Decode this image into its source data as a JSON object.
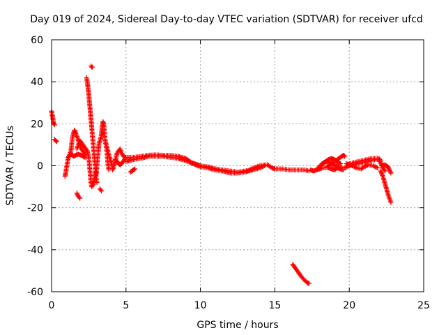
{
  "chart_data": {
    "type": "scatter",
    "title": "Day 019 of 2024, Sidereal Day-to-day VTEC variation (SDTVAR) for receiver ufcd",
    "xlabel": "GPS time / hours",
    "ylabel": "SDTVAR / TECUs",
    "xlim": [
      0,
      25
    ],
    "ylim": [
      -60,
      60
    ],
    "xticks": [
      0,
      5,
      10,
      15,
      20,
      25
    ],
    "yticks": [
      -60,
      -40,
      -20,
      0,
      20,
      40,
      60
    ],
    "grid": true,
    "marker": "+",
    "color": "#ff0000",
    "series": [
      {
        "name": "SDTVAR",
        "segments": [
          [
            [
              0.0,
              26.0
            ],
            [
              0.05,
              24.0
            ],
            [
              0.1,
              22.0
            ],
            [
              0.15,
              20.0
            ],
            [
              0.2,
              19.5
            ]
          ],
          [
            [
              0.2,
              12.5
            ],
            [
              0.3,
              11.8
            ],
            [
              0.35,
              11.5
            ]
          ],
          [
            [
              0.9,
              -5.0
            ],
            [
              0.95,
              -3.5
            ],
            [
              1.0,
              -1.0
            ],
            [
              1.05,
              1.0
            ],
            [
              1.1,
              3.0
            ],
            [
              1.2,
              5.0
            ],
            [
              1.3,
              7.0
            ],
            [
              1.35,
              10.0
            ],
            [
              1.4,
              13.5
            ],
            [
              1.5,
              16.0
            ],
            [
              1.55,
              17.0
            ],
            [
              1.6,
              16.0
            ],
            [
              1.7,
              14.0
            ],
            [
              1.8,
              12.0
            ],
            [
              1.9,
              10.0
            ],
            [
              2.0,
              8.0
            ],
            [
              2.1,
              7.0
            ],
            [
              2.2,
              6.0
            ],
            [
              2.3,
              4.0
            ]
          ],
          [
            [
              1.1,
              4.0
            ],
            [
              1.2,
              5.0
            ],
            [
              1.3,
              5.5
            ],
            [
              1.4,
              5.0
            ],
            [
              1.5,
              4.5
            ],
            [
              1.6,
              5.0
            ],
            [
              1.8,
              5.5
            ],
            [
              2.0,
              5.0
            ],
            [
              2.2,
              4.0
            ]
          ],
          [
            [
              1.7,
              8.0
            ],
            [
              1.8,
              10.0
            ],
            [
              1.9,
              12.0
            ],
            [
              2.0,
              11.0
            ],
            [
              2.2,
              9.0
            ],
            [
              2.4,
              7.0
            ],
            [
              2.5,
              4.0
            ],
            [
              2.55,
              0.0
            ],
            [
              2.6,
              -4.0
            ],
            [
              2.65,
              -8.0
            ],
            [
              2.7,
              -10.0
            ],
            [
              2.8,
              -9.0
            ],
            [
              2.9,
              -6.0
            ],
            [
              3.0,
              -3.0
            ]
          ],
          [
            [
              1.7,
              -13.0
            ],
            [
              1.75,
              -14.0
            ],
            [
              1.8,
              -14.5
            ],
            [
              1.85,
              -15.0
            ],
            [
              1.9,
              -15.5
            ]
          ],
          [
            [
              2.35,
              42.0
            ],
            [
              2.4,
              40.0
            ],
            [
              2.45,
              37.0
            ],
            [
              2.5,
              34.0
            ],
            [
              2.55,
              30.0
            ],
            [
              2.6,
              26.0
            ],
            [
              2.65,
              22.0
            ],
            [
              2.7,
              18.0
            ],
            [
              2.75,
              14.0
            ],
            [
              2.8,
              10.0
            ],
            [
              2.85,
              6.0
            ],
            [
              2.9,
              2.0
            ],
            [
              2.95,
              -2.0
            ],
            [
              3.0,
              -6.0
            ],
            [
              3.05,
              -8.0
            ]
          ],
          [
            [
              2.65,
              47.5
            ],
            [
              2.7,
              47.0
            ],
            [
              2.75,
              47.0
            ]
          ],
          [
            [
              3.0,
              -4.0
            ],
            [
              3.05,
              0.0
            ],
            [
              3.1,
              4.0
            ],
            [
              3.15,
              8.0
            ],
            [
              3.2,
              11.0
            ],
            [
              3.3,
              13.0
            ],
            [
              3.35,
              15.0
            ],
            [
              3.4,
              18.0
            ],
            [
              3.45,
              21.0
            ],
            [
              3.5,
              20.0
            ],
            [
              3.55,
              16.0
            ],
            [
              3.6,
              12.0
            ],
            [
              3.7,
              8.0
            ],
            [
              3.75,
              4.0
            ],
            [
              3.8,
              0.0
            ],
            [
              3.85,
              -2.0
            ]
          ],
          [
            [
              3.25,
              -11.0
            ],
            [
              3.3,
              -11.5
            ],
            [
              3.35,
              -12.0
            ]
          ],
          [
            [
              3.6,
              12.0
            ],
            [
              3.75,
              8.0
            ],
            [
              3.9,
              4.0
            ],
            [
              4.0,
              2.0
            ],
            [
              4.05,
              0.0
            ],
            [
              4.1,
              -2.0
            ],
            [
              4.2,
              0.0
            ],
            [
              4.3,
              3.0
            ],
            [
              4.4,
              6.0
            ],
            [
              4.5,
              7.0
            ],
            [
              4.6,
              8.0
            ],
            [
              4.7,
              6.0
            ],
            [
              4.8,
              5.0
            ],
            [
              4.9,
              4.0
            ]
          ],
          [
            [
              4.3,
              3.0
            ],
            [
              4.4,
              2.0
            ],
            [
              4.5,
              1.0
            ],
            [
              4.6,
              0.5
            ],
            [
              4.7,
              1.0
            ],
            [
              4.8,
              2.0
            ],
            [
              4.9,
              3.0
            ],
            [
              5.0,
              4.0
            ]
          ],
          [
            [
              5.0,
              4.0
            ],
            [
              5.5,
              4.0
            ],
            [
              6.0,
              4.5
            ],
            [
              6.5,
              5.0
            ],
            [
              7.0,
              5.2
            ],
            [
              7.5,
              5.0
            ],
            [
              8.0,
              5.0
            ],
            [
              8.5,
              4.5
            ],
            [
              9.0,
              3.5
            ],
            [
              9.2,
              2.5
            ],
            [
              9.4,
              1.5
            ],
            [
              9.6,
              1.0
            ],
            [
              9.8,
              0.5
            ],
            [
              10.0,
              0.0
            ],
            [
              10.5,
              -0.5
            ],
            [
              11.0,
              -1.5
            ],
            [
              11.5,
              -2.0
            ],
            [
              12.0,
              -2.5
            ],
            [
              12.5,
              -3.0
            ],
            [
              13.0,
              -2.5
            ],
            [
              13.3,
              -2.0
            ],
            [
              13.6,
              -1.0
            ],
            [
              14.0,
              0.0
            ],
            [
              14.5,
              0.5
            ],
            [
              14.8,
              -1.0
            ],
            [
              15.0,
              -1.5
            ],
            [
              15.5,
              -1.5
            ],
            [
              16.0,
              -2.0
            ],
            [
              16.5,
              -2.0
            ],
            [
              17.0,
              -2.0
            ],
            [
              17.3,
              -2.5
            ]
          ],
          [
            [
              5.0,
              2.0
            ],
            [
              5.5,
              3.0
            ],
            [
              6.0,
              3.5
            ],
            [
              6.5,
              4.5
            ],
            [
              7.0,
              4.5
            ],
            [
              7.5,
              4.5
            ],
            [
              8.0,
              4.0
            ],
            [
              8.5,
              3.5
            ],
            [
              9.0,
              2.5
            ],
            [
              9.5,
              1.0
            ],
            [
              10.0,
              -0.5
            ],
            [
              10.5,
              -1.0
            ],
            [
              11.0,
              -2.0
            ],
            [
              11.5,
              -2.5
            ],
            [
              12.0,
              -3.5
            ],
            [
              12.5,
              -3.5
            ],
            [
              13.0,
              -3.0
            ],
            [
              13.5,
              -2.0
            ],
            [
              14.0,
              -1.0
            ],
            [
              14.3,
              0.0
            ]
          ],
          [
            [
              5.3,
              -3.0
            ],
            [
              5.4,
              -2.5
            ],
            [
              5.5,
              -2.0
            ],
            [
              5.6,
              -1.5
            ]
          ],
          [
            [
              16.2,
              -47.0
            ],
            [
              16.4,
              -49.0
            ],
            [
              16.6,
              -51.0
            ],
            [
              16.8,
              -53.0
            ],
            [
              17.0,
              -54.5
            ],
            [
              17.2,
              -55.8
            ],
            [
              17.3,
              -56.0
            ]
          ],
          [
            [
              17.4,
              -2.0
            ],
            [
              17.6,
              -2.5
            ],
            [
              17.8,
              -2.0
            ],
            [
              18.0,
              -1.5
            ],
            [
              18.2,
              -1.0
            ],
            [
              18.4,
              -1.0
            ],
            [
              18.6,
              -1.0
            ],
            [
              18.8,
              -1.5
            ],
            [
              19.0,
              -2.0
            ],
            [
              19.2,
              -1.0
            ],
            [
              19.4,
              -1.5
            ],
            [
              19.6,
              -2.0
            ]
          ],
          [
            [
              17.9,
              -1.0
            ],
            [
              18.1,
              0.5
            ],
            [
              18.3,
              1.5
            ],
            [
              18.5,
              2.0
            ],
            [
              18.7,
              1.5
            ],
            [
              18.9,
              0.5
            ],
            [
              19.1,
              0.0
            ],
            [
              19.3,
              -0.5
            ],
            [
              19.5,
              -0.5
            ]
          ],
          [
            [
              18.5,
              -0.5
            ],
            [
              18.7,
              0.5
            ],
            [
              18.9,
              1.5
            ],
            [
              19.1,
              2.5
            ],
            [
              19.3,
              3.5
            ],
            [
              19.5,
              4.5
            ],
            [
              19.6,
              5.0
            ],
            [
              19.7,
              4.5
            ]
          ],
          [
            [
              18.2,
              1.0
            ],
            [
              18.4,
              2.0
            ],
            [
              18.6,
              3.0
            ],
            [
              18.8,
              3.5
            ],
            [
              19.0,
              3.0
            ],
            [
              19.2,
              2.0
            ],
            [
              19.4,
              1.0
            ]
          ],
          [
            [
              19.7,
              -1.0
            ],
            [
              20.0,
              0.0
            ],
            [
              20.3,
              0.5
            ],
            [
              20.6,
              1.0
            ],
            [
              20.9,
              1.5
            ],
            [
              21.2,
              2.0
            ],
            [
              21.5,
              2.5
            ],
            [
              21.8,
              3.0
            ],
            [
              22.0,
              3.0
            ],
            [
              22.1,
              1.5
            ],
            [
              22.2,
              0.0
            ],
            [
              22.3,
              -1.5
            ],
            [
              22.4,
              -2.5
            ]
          ],
          [
            [
              20.0,
              1.0
            ],
            [
              20.3,
              1.5
            ],
            [
              20.6,
              2.0
            ],
            [
              20.9,
              2.5
            ],
            [
              21.2,
              3.0
            ],
            [
              21.5,
              3.5
            ],
            [
              21.8,
              3.5
            ],
            [
              22.0,
              3.5
            ],
            [
              22.1,
              2.5
            ]
          ],
          [
            [
              19.8,
              1.0
            ],
            [
              20.0,
              0.5
            ],
            [
              20.2,
              0.0
            ],
            [
              20.5,
              -1.0
            ],
            [
              20.8,
              -1.5
            ],
            [
              21.0,
              -0.5
            ],
            [
              21.3,
              0.5
            ],
            [
              21.6,
              0.0
            ],
            [
              21.9,
              -1.0
            ]
          ],
          [
            [
              22.2,
              0.0
            ],
            [
              22.4,
              0.5
            ],
            [
              22.6,
              -0.5
            ],
            [
              22.7,
              -2.0
            ],
            [
              22.8,
              -3.5
            ]
          ],
          [
            [
              22.1,
              -2.5
            ],
            [
              22.2,
              -4.0
            ],
            [
              22.3,
              -6.0
            ],
            [
              22.4,
              -8.5
            ],
            [
              22.5,
              -11.0
            ],
            [
              22.6,
              -13.5
            ],
            [
              22.7,
              -15.5
            ],
            [
              22.8,
              -17.5
            ]
          ]
        ]
      }
    ]
  }
}
